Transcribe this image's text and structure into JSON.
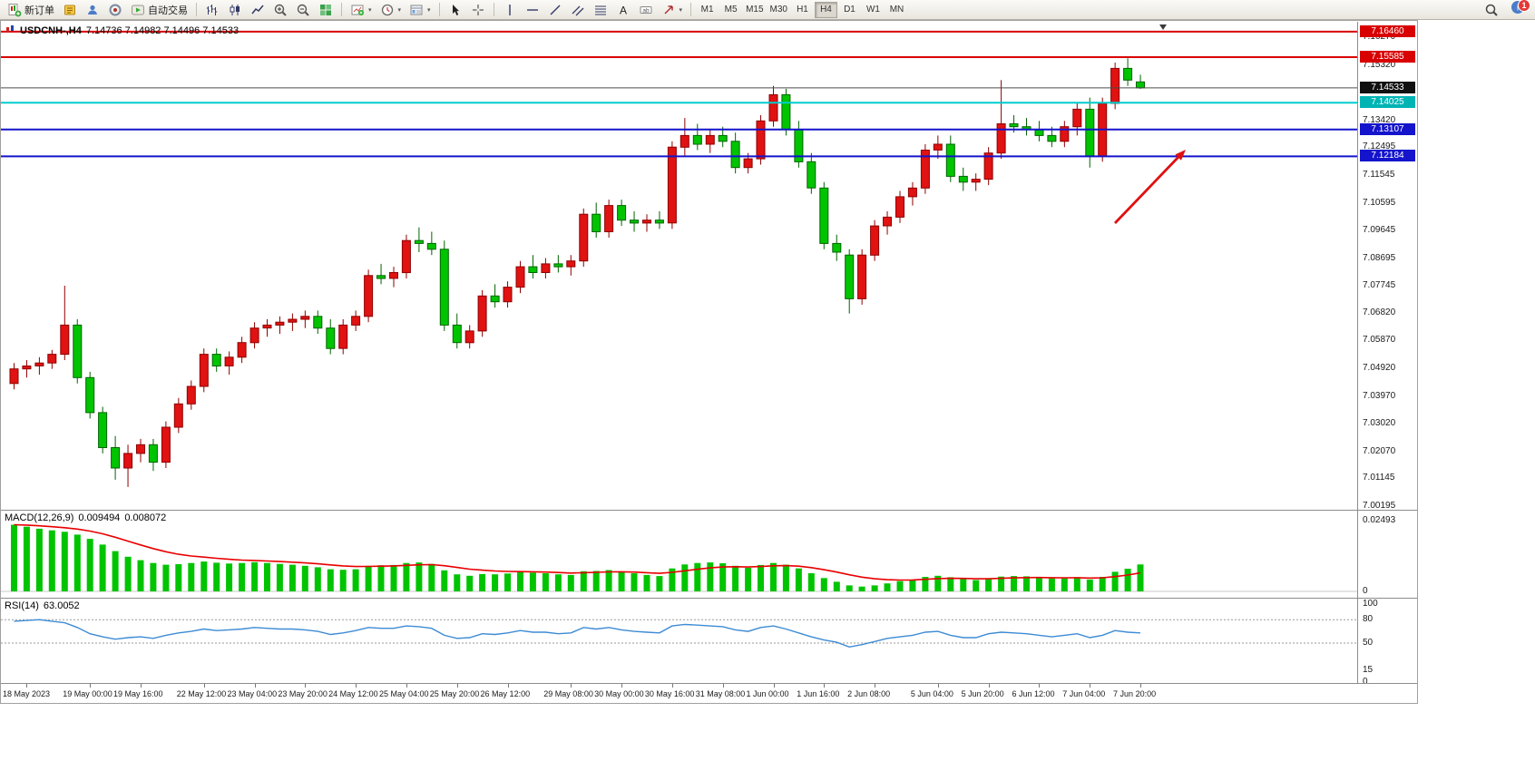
{
  "toolbar": {
    "new_order": "新订单",
    "autotrade": "自动交易",
    "timeframes": [
      "M1",
      "M5",
      "M15",
      "M30",
      "H1",
      "H4",
      "D1",
      "W1",
      "MN"
    ],
    "active_timeframe": "H4",
    "notification_badge": "1"
  },
  "chart": {
    "title": "USDCNH-,H4",
    "ohlc_text": "7.14736 7.14982 7.14496 7.14533",
    "price_axis": [
      "7.16270",
      "7.15320",
      "7.13420",
      "7.12495",
      "7.11545",
      "7.10595",
      "7.09645",
      "7.08695",
      "7.07745",
      "7.06820",
      "7.05870",
      "7.04920",
      "7.03970",
      "7.03020",
      "7.02070",
      "7.01145",
      "7.00195"
    ]
  },
  "chart_data": {
    "type": "candlestick",
    "symbol": "USDCNH",
    "timeframe": "H4",
    "ohlc_display": {
      "open": "7.14736",
      "high": "7.14982",
      "low": "7.14496",
      "close": "7.14533"
    },
    "colors": {
      "up": "#e01212",
      "up_edge": "#8f0000",
      "down": "#00c400",
      "down_edge": "#006400"
    },
    "arrow_color": "#e01010",
    "ylim": [
      7.00195,
      7.1646
    ],
    "levels": [
      {
        "price": 7.1646,
        "label": "7.16460",
        "line": "#d80000",
        "box": "#d80000",
        "weight": 2,
        "name": "resistance-level-1"
      },
      {
        "price": 7.15585,
        "label": "7.15585",
        "line": "#d80000",
        "box": "#d80000",
        "weight": 2,
        "name": "resistance-level-2"
      },
      {
        "price": 7.14533,
        "label": "7.14533",
        "line": "#4d4d4d",
        "box": "#101010",
        "weight": 1,
        "name": "current-price"
      },
      {
        "price": 7.14025,
        "label": "7.14025",
        "line": "#00cdcd",
        "box": "#00b4b4",
        "weight": 2,
        "name": "cyan-level"
      },
      {
        "price": 7.13107,
        "label": "7.13107",
        "line": "#1414cc",
        "box": "#1414cc",
        "weight": 2,
        "name": "support-level-1"
      },
      {
        "price": 7.12184,
        "label": "7.12184",
        "line": "#1414cc",
        "box": "#1414cc",
        "weight": 2,
        "name": "support-level-2"
      }
    ],
    "x_labels": [
      {
        "text": "18 May 2023",
        "i": 1
      },
      {
        "text": "19 May 00:00",
        "i": 6
      },
      {
        "text": "19 May 16:00",
        "i": 10
      },
      {
        "text": "22 May 12:00",
        "i": 15
      },
      {
        "text": "23 May 04:00",
        "i": 19
      },
      {
        "text": "23 May 20:00",
        "i": 23
      },
      {
        "text": "24 May 12:00",
        "i": 27
      },
      {
        "text": "25 May 04:00",
        "i": 31
      },
      {
        "text": "25 May 20:00",
        "i": 35
      },
      {
        "text": "26 May 12:00",
        "i": 39
      },
      {
        "text": "29 May 08:00",
        "i": 44
      },
      {
        "text": "30 May 00:00",
        "i": 48
      },
      {
        "text": "30 May 16:00",
        "i": 52
      },
      {
        "text": "31 May 08:00",
        "i": 56
      },
      {
        "text": "1 Jun 00:00",
        "i": 60
      },
      {
        "text": "1 Jun 16:00",
        "i": 64
      },
      {
        "text": "2 Jun 08:00",
        "i": 68
      },
      {
        "text": "5 Jun 04:00",
        "i": 73
      },
      {
        "text": "5 Jun 20:00",
        "i": 77
      },
      {
        "text": "6 Jun 12:00",
        "i": 81
      },
      {
        "text": "7 Jun 04:00",
        "i": 85
      },
      {
        "text": "7 Jun 20:00",
        "i": 89
      }
    ],
    "candles": [
      [
        7.044,
        7.051,
        7.042,
        7.049
      ],
      [
        7.049,
        7.052,
        7.046,
        7.05
      ],
      [
        7.05,
        7.053,
        7.047,
        7.051
      ],
      [
        7.051,
        7.0555,
        7.049,
        7.054
      ],
      [
        7.054,
        7.0775,
        7.052,
        7.064
      ],
      [
        7.064,
        7.066,
        7.044,
        7.046
      ],
      [
        7.046,
        7.048,
        7.032,
        7.034
      ],
      [
        7.034,
        7.036,
        7.02,
        7.022
      ],
      [
        7.022,
        7.026,
        7.011,
        7.015
      ],
      [
        7.015,
        7.023,
        7.0085,
        7.02
      ],
      [
        7.02,
        7.025,
        7.017,
        7.023
      ],
      [
        7.023,
        7.025,
        7.014,
        7.017
      ],
      [
        7.017,
        7.031,
        7.015,
        7.029
      ],
      [
        7.029,
        7.039,
        7.027,
        7.037
      ],
      [
        7.037,
        7.045,
        7.035,
        7.043
      ],
      [
        7.043,
        7.056,
        7.041,
        7.054
      ],
      [
        7.054,
        7.056,
        7.048,
        7.05
      ],
      [
        7.05,
        7.055,
        7.047,
        7.053
      ],
      [
        7.053,
        7.06,
        7.051,
        7.058
      ],
      [
        7.058,
        7.065,
        7.056,
        7.063
      ],
      [
        7.063,
        7.066,
        7.06,
        7.064
      ],
      [
        7.064,
        7.067,
        7.061,
        7.065
      ],
      [
        7.065,
        7.068,
        7.062,
        7.066
      ],
      [
        7.066,
        7.069,
        7.063,
        7.067
      ],
      [
        7.067,
        7.069,
        7.061,
        7.063
      ],
      [
        7.063,
        7.066,
        7.054,
        7.056
      ],
      [
        7.056,
        7.066,
        7.054,
        7.064
      ],
      [
        7.064,
        7.069,
        7.062,
        7.067
      ],
      [
        7.067,
        7.083,
        7.065,
        7.081
      ],
      [
        7.081,
        7.085,
        7.078,
        7.08
      ],
      [
        7.08,
        7.084,
        7.077,
        7.082
      ],
      [
        7.082,
        7.095,
        7.08,
        7.093
      ],
      [
        7.093,
        7.0975,
        7.089,
        7.092
      ],
      [
        7.092,
        7.096,
        7.088,
        7.09
      ],
      [
        7.09,
        7.093,
        7.062,
        7.064
      ],
      [
        7.064,
        7.068,
        7.056,
        7.058
      ],
      [
        7.058,
        7.064,
        7.056,
        7.062
      ],
      [
        7.062,
        7.076,
        7.06,
        7.074
      ],
      [
        7.074,
        7.078,
        7.07,
        7.072
      ],
      [
        7.072,
        7.079,
        7.07,
        7.077
      ],
      [
        7.077,
        7.086,
        7.075,
        7.084
      ],
      [
        7.084,
        7.088,
        7.08,
        7.082
      ],
      [
        7.082,
        7.087,
        7.08,
        7.085
      ],
      [
        7.085,
        7.088,
        7.082,
        7.084
      ],
      [
        7.084,
        7.088,
        7.081,
        7.086
      ],
      [
        7.086,
        7.104,
        7.084,
        7.102
      ],
      [
        7.102,
        7.106,
        7.094,
        7.096
      ],
      [
        7.096,
        7.107,
        7.094,
        7.105
      ],
      [
        7.105,
        7.107,
        7.098,
        7.1
      ],
      [
        7.1,
        7.103,
        7.096,
        7.099
      ],
      [
        7.099,
        7.102,
        7.096,
        7.1
      ],
      [
        7.1,
        7.103,
        7.097,
        7.099
      ],
      [
        7.099,
        7.127,
        7.097,
        7.125
      ],
      [
        7.125,
        7.135,
        7.122,
        7.129
      ],
      [
        7.129,
        7.133,
        7.124,
        7.126
      ],
      [
        7.126,
        7.131,
        7.123,
        7.129
      ],
      [
        7.129,
        7.132,
        7.125,
        7.127
      ],
      [
        7.127,
        7.13,
        7.116,
        7.118
      ],
      [
        7.118,
        7.123,
        7.116,
        7.121
      ],
      [
        7.121,
        7.136,
        7.119,
        7.134
      ],
      [
        7.134,
        7.146,
        7.132,
        7.143
      ],
      [
        7.143,
        7.145,
        7.129,
        7.131
      ],
      [
        7.131,
        7.134,
        7.118,
        7.12
      ],
      [
        7.12,
        7.123,
        7.109,
        7.111
      ],
      [
        7.111,
        7.113,
        7.09,
        7.092
      ],
      [
        7.092,
        7.095,
        7.086,
        7.089
      ],
      [
        7.088,
        7.09,
        7.068,
        7.073
      ],
      [
        7.073,
        7.09,
        7.071,
        7.088
      ],
      [
        7.088,
        7.1,
        7.086,
        7.098
      ],
      [
        7.098,
        7.103,
        7.095,
        7.101
      ],
      [
        7.101,
        7.11,
        7.099,
        7.108
      ],
      [
        7.108,
        7.113,
        7.105,
        7.111
      ],
      [
        7.111,
        7.126,
        7.109,
        7.124
      ],
      [
        7.124,
        7.129,
        7.121,
        7.126
      ],
      [
        7.126,
        7.129,
        7.113,
        7.115
      ],
      [
        7.115,
        7.118,
        7.11,
        7.113
      ],
      [
        7.113,
        7.116,
        7.11,
        7.114
      ],
      [
        7.114,
        7.125,
        7.112,
        7.123
      ],
      [
        7.123,
        7.148,
        7.121,
        7.133
      ],
      [
        7.133,
        7.136,
        7.13,
        7.132
      ],
      [
        7.132,
        7.135,
        7.129,
        7.131
      ],
      [
        7.131,
        7.134,
        7.127,
        7.129
      ],
      [
        7.129,
        7.132,
        7.125,
        7.127
      ],
      [
        7.127,
        7.134,
        7.125,
        7.132
      ],
      [
        7.132,
        7.14,
        7.129,
        7.138
      ],
      [
        7.138,
        7.142,
        7.118,
        7.122
      ],
      [
        7.122,
        7.142,
        7.12,
        7.14
      ],
      [
        7.14,
        7.154,
        7.138,
        7.152
      ],
      [
        7.152,
        7.1555,
        7.146,
        7.148
      ],
      [
        7.14736,
        7.14982,
        7.14496,
        7.14533
      ]
    ],
    "indicators": {
      "macd": {
        "label": "MACD(12,26,9)",
        "main": "0.009494",
        "signal": "0.008072",
        "axis_labels": [
          {
            "text": "0.02493",
            "v": 0.02493
          },
          {
            "text": "0",
            "v": 0
          }
        ],
        "hist_color": "#00c400",
        "signal_color": "#e80000",
        "hist": [
          0.0235,
          0.0228,
          0.0221,
          0.0215,
          0.021,
          0.02,
          0.0185,
          0.0165,
          0.0142,
          0.0122,
          0.011,
          0.01,
          0.0094,
          0.0096,
          0.01,
          0.0105,
          0.0101,
          0.0098,
          0.01,
          0.0103,
          0.01,
          0.0097,
          0.0094,
          0.009,
          0.0085,
          0.0078,
          0.0076,
          0.0078,
          0.009,
          0.0092,
          0.0093,
          0.01,
          0.0102,
          0.0097,
          0.0074,
          0.006,
          0.0055,
          0.0061,
          0.006,
          0.0063,
          0.0068,
          0.0066,
          0.0064,
          0.006,
          0.0058,
          0.0071,
          0.0072,
          0.0075,
          0.007,
          0.0064,
          0.0058,
          0.0054,
          0.0081,
          0.0095,
          0.01,
          0.0102,
          0.0099,
          0.009,
          0.0083,
          0.0093,
          0.01,
          0.0094,
          0.0081,
          0.0064,
          0.0047,
          0.0034,
          0.0021,
          0.0017,
          0.0021,
          0.0028,
          0.0036,
          0.0041,
          0.0051,
          0.0055,
          0.005,
          0.0044,
          0.004,
          0.0045,
          0.0052,
          0.0054,
          0.0053,
          0.005,
          0.0046,
          0.0046,
          0.005,
          0.0042,
          0.0051,
          0.0069,
          0.008,
          0.0095
        ]
      },
      "rsi": {
        "label": "RSI(14)",
        "value": "63.0052",
        "color": "#3d8bd4",
        "levels": [
          80,
          50
        ],
        "axis_labels": [
          {
            "text": "100",
            "v": 100
          },
          {
            "text": "80",
            "v": 80
          },
          {
            "text": "50",
            "v": 50
          },
          {
            "text": "15",
            "v": 15
          },
          {
            "text": "0",
            "v": 0
          }
        ],
        "values": [
          78,
          79,
          80,
          78,
          76,
          70,
          62,
          58,
          55,
          57,
          58,
          56,
          60,
          63,
          65,
          68,
          66,
          67,
          68,
          70,
          69,
          68,
          68,
          67,
          65,
          61,
          63,
          66,
          70,
          69,
          69,
          72,
          71,
          69,
          60,
          56,
          57,
          62,
          61,
          63,
          66,
          64,
          64,
          62,
          63,
          70,
          68,
          70,
          67,
          65,
          64,
          63,
          72,
          74,
          73,
          72,
          71,
          67,
          65,
          70,
          72,
          68,
          63,
          58,
          54,
          51,
          45,
          48,
          52,
          56,
          58,
          60,
          64,
          65,
          60,
          57,
          57,
          62,
          64,
          63,
          62,
          60,
          58,
          60,
          62,
          57,
          60,
          66,
          64,
          63.0052
        ]
      }
    }
  }
}
